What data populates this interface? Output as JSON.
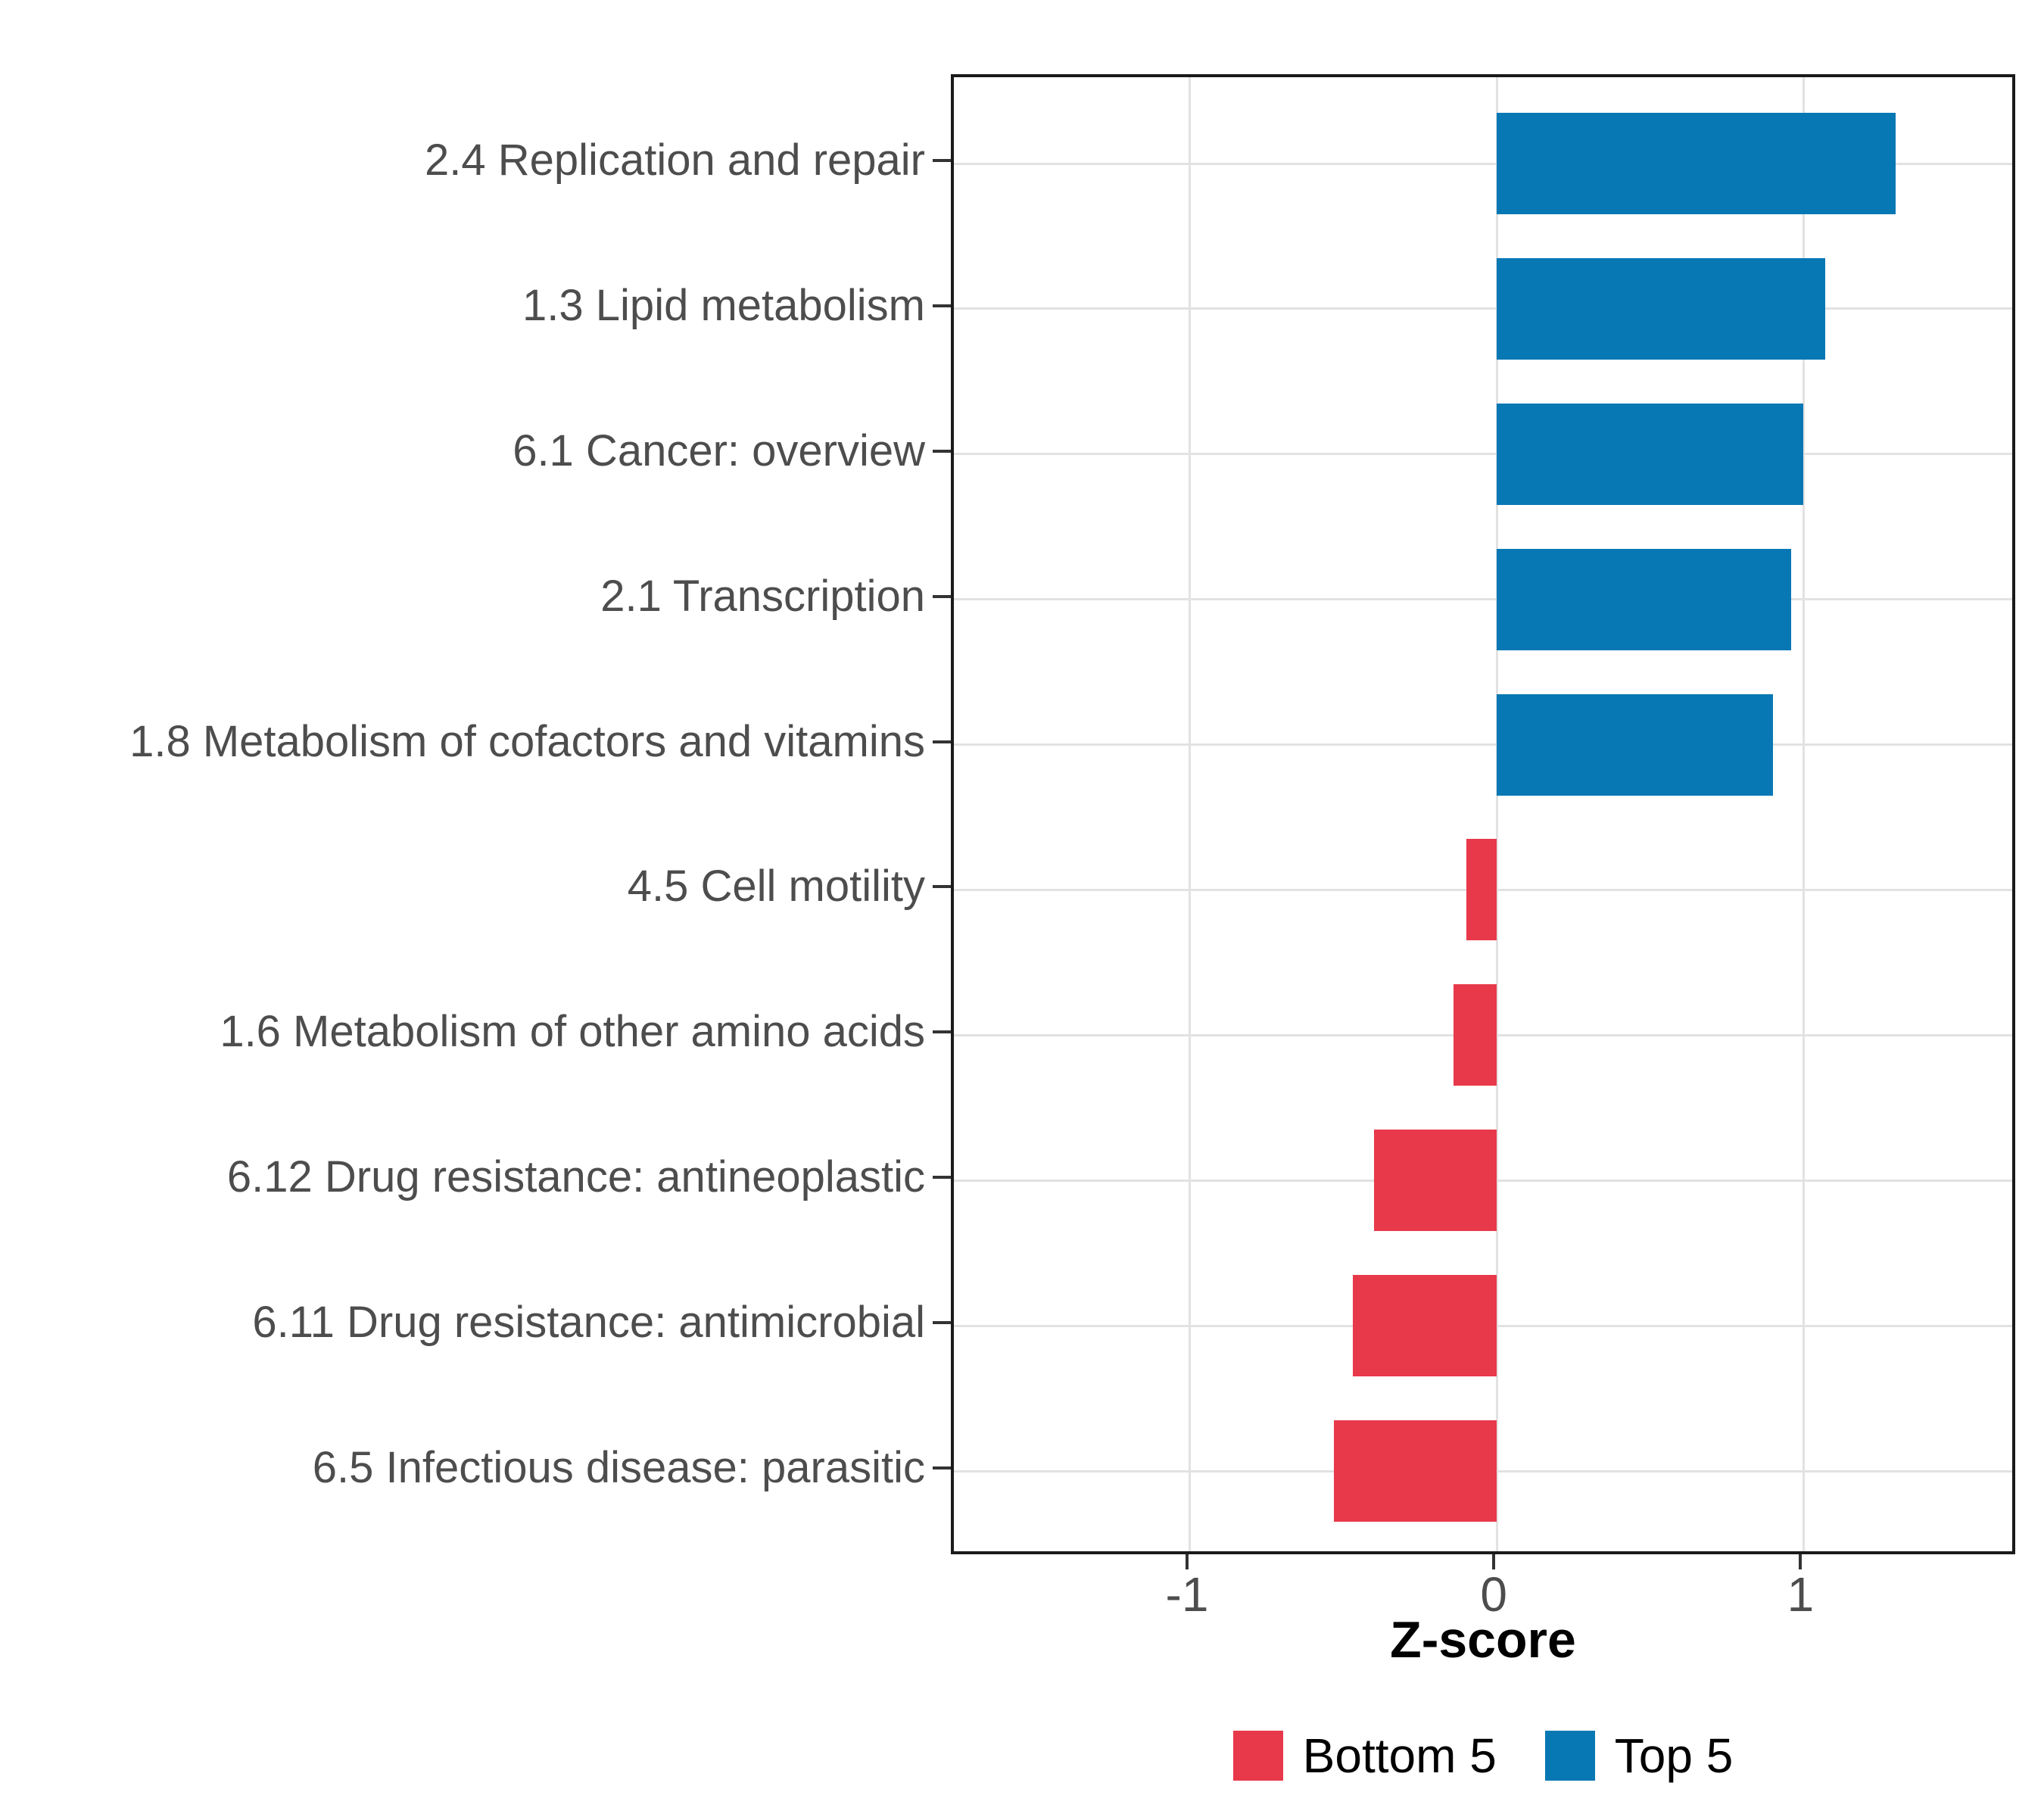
{
  "chart_data": {
    "type": "bar",
    "orientation": "horizontal",
    "title": "",
    "xlabel": "Z-score",
    "ylabel": "",
    "categories": [
      "2.4 Replication and repair",
      "1.3 Lipid metabolism",
      "6.1 Cancer: overview",
      "2.1 Transcription",
      "1.8 Metabolism of cofactors and vitamins",
      "4.5 Cell motility",
      "1.6 Metabolism of other amino acids",
      "6.12 Drug resistance: antineoplastic",
      "6.11 Drug resistance: antimicrobial",
      "6.5 Infectious disease: parasitic"
    ],
    "values": [
      1.3,
      1.07,
      1.0,
      0.96,
      0.9,
      -0.1,
      -0.14,
      -0.4,
      -0.47,
      -0.53
    ],
    "bar_groups": [
      "Top 5",
      "Top 5",
      "Top 5",
      "Top 5",
      "Top 5",
      "Bottom 5",
      "Bottom 5",
      "Bottom 5",
      "Bottom 5",
      "Bottom 5"
    ],
    "xlim": [
      -1.77,
      1.7
    ],
    "x_ticks": [
      {
        "value": -1,
        "label": "-1"
      },
      {
        "value": 0,
        "label": "0"
      },
      {
        "value": 1,
        "label": "1"
      }
    ],
    "grid": {
      "vertical_major_at": [
        -1,
        0,
        1
      ],
      "horizontal_major": "per-category",
      "minor": false
    },
    "legend": {
      "position": "bottom-center",
      "entries": [
        {
          "label": "Bottom 5",
          "color": "#E8394A"
        },
        {
          "label": "Top 5",
          "color": "#0878B4"
        }
      ]
    }
  },
  "colors": {
    "top5_bar": "#0878B4",
    "bottom5_bar": "#E8394A",
    "gridline": "#E2E2E2",
    "panel_border": "#1A1A1A",
    "axis_tick": "#333333",
    "axis_text": "#4D4D4D",
    "axis_title_text": "#000000",
    "background": "#FFFFFF"
  }
}
